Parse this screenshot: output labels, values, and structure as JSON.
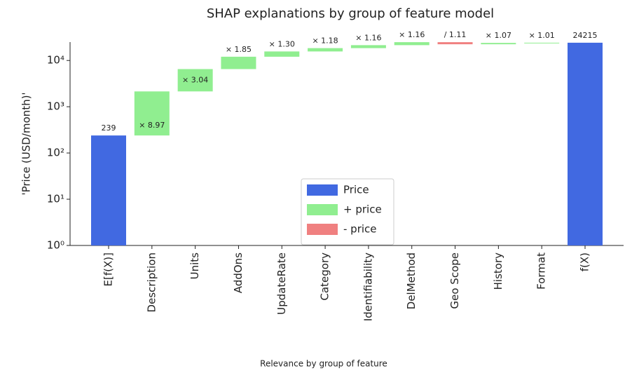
{
  "chart_data": {
    "type": "waterfall",
    "title": "SHAP explanations by group of feature model",
    "xlabel": "Relevance by group of feature",
    "ylabel": "'Price (USD/month)'",
    "categories": [
      "E[f(X)]",
      "Description",
      "Units",
      "AddOns",
      "UpdateRate",
      "Category",
      "Identifiability",
      "DelMethod",
      "Geo Scope",
      "History",
      "Format",
      "f(X)"
    ],
    "series": [
      {
        "name": "Price",
        "color": "#4169e1",
        "values": [
          239,
          null,
          null,
          null,
          null,
          null,
          null,
          null,
          null,
          null,
          null,
          24215
        ],
        "value_labels": [
          "239",
          null,
          null,
          null,
          null,
          null,
          null,
          null,
          null,
          null,
          null,
          "24215"
        ]
      },
      {
        "name": "+ price",
        "color": "#90ee90",
        "values": [
          null,
          8.97,
          3.04,
          1.85,
          1.3,
          1.18,
          1.16,
          1.16,
          null,
          1.07,
          1.01,
          null
        ],
        "value_labels": [
          null,
          "× 8.97",
          "× 3.04",
          "× 1.85",
          "× 1.30",
          "× 1.18",
          "× 1.16",
          "× 1.16",
          null,
          "× 1.07",
          "× 1.01",
          null
        ]
      },
      {
        "name": "- price",
        "color": "#f08080",
        "values": [
          null,
          null,
          null,
          null,
          null,
          null,
          null,
          null,
          1.11,
          null,
          null,
          null
        ],
        "value_labels": [
          null,
          null,
          null,
          null,
          null,
          null,
          null,
          null,
          "/ 1.11",
          null,
          null,
          null
        ]
      }
    ],
    "log_scale": true,
    "ylim": [
      1,
      25000
    ],
    "yticks": [
      {
        "value": 1,
        "label": "10⁰"
      },
      {
        "value": 10,
        "label": "10¹"
      },
      {
        "value": 100,
        "label": "10²"
      },
      {
        "value": 1000,
        "label": "10³"
      },
      {
        "value": 10000,
        "label": "10⁴"
      }
    ],
    "legend": "lower center"
  }
}
